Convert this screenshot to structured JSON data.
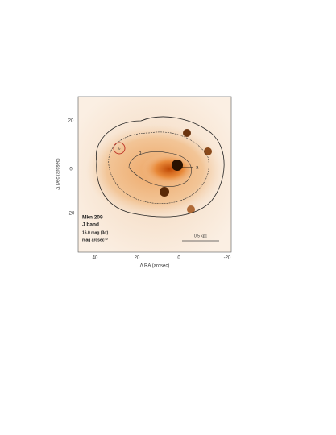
{
  "figure": {
    "y_axis_label": "Δ Dec (arcsec)",
    "x_axis_label": "Δ RA (arcsec)",
    "y_ticks": [
      "20",
      "0",
      "-20"
    ],
    "x_ticks": [
      "40",
      "20",
      "0",
      "-20"
    ],
    "legend": {
      "name": "Mkn 209",
      "band": "J band",
      "limit": "16.0 mag (3σ)",
      "units": "mag arcsec⁻²"
    },
    "knots": [
      "a",
      "b",
      "c"
    ],
    "scale_bar": "0.5 kpc"
  }
}
